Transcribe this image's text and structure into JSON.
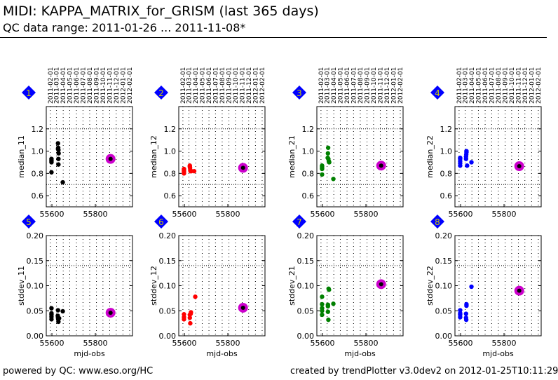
{
  "header": {
    "title": "MIDI: KAPPA_MATRIX_for_GRISM (last 365 days)",
    "subtitle": "QC data range: 2011-01-26 ... 2011-11-08*"
  },
  "footer": {
    "left": "powered by QC: www.eso.org/HC",
    "right": "created by trendPlotter v3.0dev2 on 2012-01-25T10:11:29"
  },
  "colors": {
    "badge": "#0000ff",
    "badge_text": "#cccc00",
    "highlight": "#cc00cc"
  },
  "chart_data": {
    "type": "scatter",
    "xlim": [
      55574,
      55971
    ],
    "xticks": [
      55600,
      55800
    ],
    "xlabel": "mjd-obs",
    "date_ticks": [
      {
        "label": "2011-02-01",
        "mjd": 55593
      },
      {
        "label": "2011-03-01",
        "mjd": 55621
      },
      {
        "label": "2011-04-01",
        "mjd": 55652
      },
      {
        "label": "2011-05-01",
        "mjd": 55682
      },
      {
        "label": "2011-06-01",
        "mjd": 55713
      },
      {
        "label": "2011-07-01",
        "mjd": 55743
      },
      {
        "label": "2011-08-01",
        "mjd": 55774
      },
      {
        "label": "2011-09-01",
        "mjd": 55805
      },
      {
        "label": "2011-10-01",
        "mjd": 55835
      },
      {
        "label": "2011-11-01",
        "mjd": 55866
      },
      {
        "label": "2011-12-01",
        "mjd": 55896
      },
      {
        "label": "2012-01-01",
        "mjd": 55927
      },
      {
        "label": "2012-02-01",
        "mjd": 55958
      }
    ],
    "panels": [
      {
        "id": "1",
        "ylabel": "median_11",
        "color": "#000000",
        "ylim": [
          0.5,
          1.4
        ],
        "yticks": [
          0.6,
          0.8,
          1.0,
          1.2
        ],
        "ytick_labels": [
          "0.6",
          "0.8",
          "1.0",
          "1.2"
        ],
        "thresholds": [
          0.7,
          1.2
        ],
        "show_xlabel": false,
        "points": [
          [
            55598,
            0.9
          ],
          [
            55598,
            0.91
          ],
          [
            55598,
            0.92
          ],
          [
            55598,
            0.93
          ],
          [
            55598,
            0.81
          ],
          [
            55628,
            1.07
          ],
          [
            55628,
            1.02
          ],
          [
            55629,
            1.03
          ],
          [
            55630,
            1.01
          ],
          [
            55631,
            0.98
          ],
          [
            55630,
            0.93
          ],
          [
            55630,
            0.88
          ],
          [
            55650,
            0.72
          ]
        ],
        "highlight": [
          55870,
          0.93
        ]
      },
      {
        "id": "2",
        "ylabel": "median_12",
        "color": "#ff0000",
        "ylim": [
          0.5,
          1.4
        ],
        "yticks": [
          0.6,
          0.8,
          1.0,
          1.2
        ],
        "ytick_labels": [
          "0.6",
          "0.8",
          "1.0",
          "1.2"
        ],
        "thresholds": [
          0.7,
          1.2
        ],
        "show_xlabel": false,
        "points": [
          [
            55598,
            0.8
          ],
          [
            55598,
            0.81
          ],
          [
            55598,
            0.82
          ],
          [
            55598,
            0.83
          ],
          [
            55598,
            0.84
          ],
          [
            55625,
            0.87
          ],
          [
            55625,
            0.86
          ],
          [
            55626,
            0.85
          ],
          [
            55627,
            0.83
          ],
          [
            55628,
            0.82
          ],
          [
            55632,
            0.82
          ],
          [
            55645,
            0.82
          ]
        ],
        "highlight": [
          55870,
          0.85
        ]
      },
      {
        "id": "3",
        "ylabel": "median_21",
        "color": "#008000",
        "ylim": [
          0.5,
          1.4
        ],
        "yticks": [
          0.6,
          0.8,
          1.0,
          1.2
        ],
        "ytick_labels": [
          "0.6",
          "0.8",
          "1.0",
          "1.2"
        ],
        "thresholds": [
          0.7,
          1.2
        ],
        "show_xlabel": false,
        "points": [
          [
            55598,
            0.79
          ],
          [
            55598,
            0.84
          ],
          [
            55598,
            0.85
          ],
          [
            55598,
            0.86
          ],
          [
            55598,
            0.87
          ],
          [
            55626,
            1.03
          ],
          [
            55625,
            0.98
          ],
          [
            55624,
            0.94
          ],
          [
            55627,
            0.93
          ],
          [
            55629,
            0.91
          ],
          [
            55631,
            0.9
          ],
          [
            55650,
            0.75
          ]
        ],
        "highlight": [
          55870,
          0.87
        ]
      },
      {
        "id": "4",
        "ylabel": "median_22",
        "color": "#0000ff",
        "ylim": [
          0.5,
          1.4
        ],
        "yticks": [
          0.6,
          0.8,
          1.0,
          1.2
        ],
        "ytick_labels": [
          "0.6",
          "0.8",
          "1.0",
          "1.2"
        ],
        "thresholds": [
          0.7,
          1.2
        ],
        "show_xlabel": false,
        "points": [
          [
            55598,
            0.87
          ],
          [
            55598,
            0.89
          ],
          [
            55598,
            0.91
          ],
          [
            55598,
            0.93
          ],
          [
            55598,
            0.94
          ],
          [
            55625,
            0.93
          ],
          [
            55625,
            0.95
          ],
          [
            55626,
            0.97
          ],
          [
            55627,
            0.99
          ],
          [
            55627,
            1.0
          ],
          [
            55630,
            0.87
          ],
          [
            55650,
            0.9
          ]
        ],
        "highlight": [
          55870,
          0.865
        ]
      },
      {
        "id": "5",
        "ylabel": "stddev_11",
        "color": "#000000",
        "ylim": [
          0.0,
          0.2
        ],
        "yticks": [
          0.0,
          0.05,
          0.1,
          0.15,
          0.2
        ],
        "ytick_labels": [
          "0.00",
          "0.05",
          "0.10",
          "0.15",
          "0.20"
        ],
        "thresholds": [
          0.14
        ],
        "show_xlabel": true,
        "points": [
          [
            55598,
            0.055
          ],
          [
            55598,
            0.045
          ],
          [
            55598,
            0.042
          ],
          [
            55598,
            0.038
          ],
          [
            55598,
            0.033
          ],
          [
            55628,
            0.051
          ],
          [
            55627,
            0.04
          ],
          [
            55628,
            0.036
          ],
          [
            55629,
            0.033
          ],
          [
            55630,
            0.028
          ],
          [
            55633,
            0.035
          ],
          [
            55650,
            0.049
          ]
        ],
        "highlight": [
          55870,
          0.046
        ]
      },
      {
        "id": "6",
        "ylabel": "stddev_12",
        "color": "#ff0000",
        "ylim": [
          0.0,
          0.2
        ],
        "yticks": [
          0.0,
          0.05,
          0.1,
          0.15,
          0.2
        ],
        "ytick_labels": [
          "0.00",
          "0.05",
          "0.10",
          "0.15",
          "0.20"
        ],
        "thresholds": [
          0.14
        ],
        "show_xlabel": true,
        "points": [
          [
            55598,
            0.043
          ],
          [
            55598,
            0.037
          ],
          [
            55598,
            0.033
          ],
          [
            55625,
            0.042
          ],
          [
            55625,
            0.036
          ],
          [
            55627,
            0.025
          ],
          [
            55630,
            0.047
          ],
          [
            55629,
            0.044
          ],
          [
            55650,
            0.078
          ]
        ],
        "highlight": [
          55870,
          0.056
        ]
      },
      {
        "id": "7",
        "ylabel": "stddev_21",
        "color": "#008000",
        "ylim": [
          0.0,
          0.2
        ],
        "yticks": [
          0.0,
          0.05,
          0.1,
          0.15,
          0.2
        ],
        "ytick_labels": [
          "0.00",
          "0.05",
          "0.10",
          "0.15",
          "0.20"
        ],
        "thresholds": [
          0.14
        ],
        "show_xlabel": true,
        "points": [
          [
            55598,
            0.078
          ],
          [
            55598,
            0.063
          ],
          [
            55598,
            0.055
          ],
          [
            55598,
            0.05
          ],
          [
            55598,
            0.042
          ],
          [
            55625,
            0.062
          ],
          [
            55625,
            0.059
          ],
          [
            55625,
            0.048
          ],
          [
            55627,
            0.032
          ],
          [
            55628,
            0.094
          ],
          [
            55630,
            0.092
          ],
          [
            55650,
            0.064
          ]
        ],
        "highlight": [
          55870,
          0.103
        ]
      },
      {
        "id": "8",
        "ylabel": "stddev_22",
        "color": "#0000ff",
        "ylim": [
          0.0,
          0.2
        ],
        "yticks": [
          0.0,
          0.05,
          0.1,
          0.15,
          0.2
        ],
        "ytick_labels": [
          "0.00",
          "0.05",
          "0.10",
          "0.15",
          "0.20"
        ],
        "thresholds": [
          0.14
        ],
        "show_xlabel": true,
        "points": [
          [
            55598,
            0.051
          ],
          [
            55598,
            0.045
          ],
          [
            55598,
            0.042
          ],
          [
            55598,
            0.037
          ],
          [
            55627,
            0.063
          ],
          [
            55627,
            0.06
          ],
          [
            55625,
            0.044
          ],
          [
            55625,
            0.036
          ],
          [
            55626,
            0.032
          ],
          [
            55650,
            0.098
          ]
        ],
        "highlight": [
          55870,
          0.09
        ]
      }
    ]
  }
}
